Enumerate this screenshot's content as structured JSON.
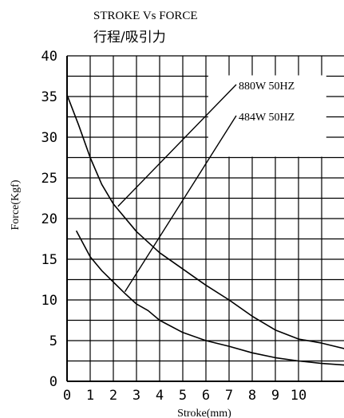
{
  "chart_data": {
    "type": "line",
    "title": "STROKE Vs FORCE",
    "subtitle": "行程/吸引力",
    "xlabel": "Stroke(mm)",
    "ylabel": "Force(Kgf)",
    "xlim": [
      0,
      12
    ],
    "ylim": [
      0,
      40
    ],
    "x_ticks": [
      "0",
      "1",
      "2",
      "3",
      "4",
      "5",
      "6",
      "7",
      "8",
      "9",
      "10"
    ],
    "y_ticks": [
      "0",
      "5",
      "10",
      "15",
      "20",
      "25",
      "30",
      "35",
      "40"
    ],
    "grid": true,
    "series": [
      {
        "name": "880W 50HZ",
        "x": [
          0,
          0.5,
          1,
          1.5,
          2,
          3,
          4,
          5,
          6,
          7,
          8,
          9,
          10,
          11,
          12
        ],
        "y": [
          35.2,
          31.5,
          27.5,
          24.2,
          21.8,
          18.4,
          15.8,
          13.8,
          11.8,
          10.0,
          8.0,
          6.3,
          5.2,
          4.7,
          4.0
        ]
      },
      {
        "name": "484W 50HZ",
        "x": [
          0.4,
          1,
          1.5,
          2,
          2.5,
          3,
          3.5,
          4,
          5,
          6,
          7,
          8,
          9,
          10,
          11,
          12
        ],
        "y": [
          18.5,
          15.3,
          13.6,
          12.2,
          10.8,
          9.5,
          8.7,
          7.5,
          6.0,
          5.0,
          4.3,
          3.5,
          2.9,
          2.5,
          2.2,
          2.0
        ]
      }
    ],
    "annotations": [
      {
        "text": "880W 50HZ",
        "series": 0,
        "point_x": 2.2,
        "point_y": 21.5
      },
      {
        "text": "484W 50HZ",
        "series": 1,
        "point_x": 2.5,
        "point_y": 11.0
      }
    ]
  }
}
